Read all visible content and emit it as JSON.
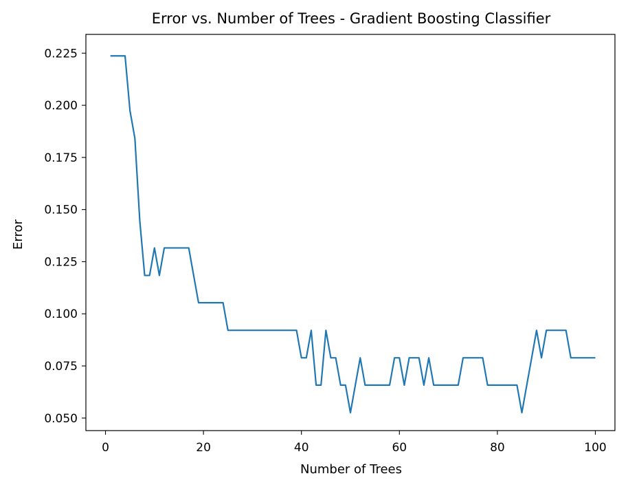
{
  "chart_data": {
    "type": "line",
    "title": "Error vs. Number of Trees - Gradient Boosting Classifier",
    "xlabel": "Number of Trees",
    "ylabel": "Error",
    "xlim": [
      -4,
      104
    ],
    "ylim": [
      0.044,
      0.234
    ],
    "xticks": [
      0,
      20,
      40,
      60,
      80,
      100
    ],
    "xtick_labels": [
      "0",
      "20",
      "40",
      "60",
      "80",
      "100"
    ],
    "yticks": [
      0.05,
      0.075,
      0.1,
      0.125,
      0.15,
      0.175,
      0.2,
      0.225
    ],
    "ytick_labels": [
      "0.050",
      "0.075",
      "0.100",
      "0.125",
      "0.150",
      "0.175",
      "0.200",
      "0.225"
    ],
    "grid": false,
    "line_color": "#1f77b4",
    "series": [
      {
        "x": [
          1,
          2,
          3,
          4,
          5,
          6,
          7,
          8,
          9,
          10,
          11,
          12,
          13,
          14,
          15,
          16,
          17,
          18,
          19,
          20,
          21,
          22,
          23,
          24,
          25,
          26,
          27,
          28,
          29,
          30,
          31,
          32,
          33,
          34,
          35,
          36,
          37,
          38,
          39,
          40,
          41,
          42,
          43,
          44,
          45,
          46,
          47,
          48,
          49,
          50,
          51,
          52,
          53,
          54,
          55,
          56,
          57,
          58,
          59,
          60,
          61,
          62,
          63,
          64,
          65,
          66,
          67,
          68,
          69,
          70,
          71,
          72,
          73,
          74,
          75,
          76,
          77,
          78,
          79,
          80,
          81,
          82,
          83,
          84,
          85,
          86,
          87,
          88,
          89,
          90,
          91,
          92,
          93,
          94,
          95,
          96,
          97,
          98,
          99,
          100
        ],
        "values": [
          0.2237,
          0.2237,
          0.2237,
          0.2237,
          0.1974,
          0.1842,
          0.1447,
          0.1184,
          0.1184,
          0.1316,
          0.1184,
          0.1316,
          0.1316,
          0.1316,
          0.1316,
          0.1316,
          0.1316,
          0.1184,
          0.1053,
          0.1053,
          0.1053,
          0.1053,
          0.1053,
          0.1053,
          0.0921,
          0.0921,
          0.0921,
          0.0921,
          0.0921,
          0.0921,
          0.0921,
          0.0921,
          0.0921,
          0.0921,
          0.0921,
          0.0921,
          0.0921,
          0.0921,
          0.0921,
          0.0789,
          0.0789,
          0.0921,
          0.0658,
          0.0658,
          0.0921,
          0.0789,
          0.0789,
          0.0658,
          0.0658,
          0.0526,
          0.0658,
          0.0789,
          0.0658,
          0.0658,
          0.0658,
          0.0658,
          0.0658,
          0.0658,
          0.0789,
          0.0789,
          0.0658,
          0.0789,
          0.0789,
          0.0789,
          0.0658,
          0.0789,
          0.0658,
          0.0658,
          0.0658,
          0.0658,
          0.0658,
          0.0658,
          0.0789,
          0.0789,
          0.0789,
          0.0789,
          0.0789,
          0.0658,
          0.0658,
          0.0658,
          0.0658,
          0.0658,
          0.0658,
          0.0658,
          0.0526,
          0.0658,
          0.0789,
          0.0921,
          0.0789,
          0.0921,
          0.0921,
          0.0921,
          0.0921,
          0.0921,
          0.0789,
          0.0789,
          0.0789,
          0.0789,
          0.0789,
          0.0789
        ]
      }
    ]
  }
}
